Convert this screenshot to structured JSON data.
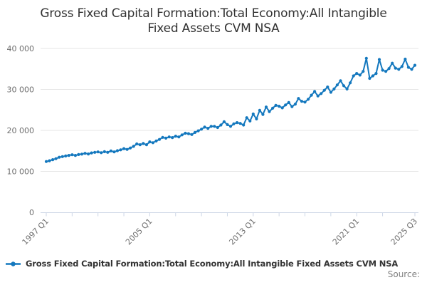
{
  "title": {
    "line1": "Gross Fixed Capital Formation:Total Economy:All Intangible",
    "line2": "Fixed Assets CVM NSA"
  },
  "legend": {
    "label": "Gross Fixed Capital Formation:Total Economy:All Intangible Fixed Assets CVM NSA"
  },
  "source": {
    "label": "Source:"
  },
  "colors": {
    "series": "#1478be",
    "grid": "#e6e6e6",
    "axis": "#ccd6e6",
    "tick_label": "#6f6f6f",
    "text": "#333333",
    "source_text": "#808080"
  },
  "chart_data": {
    "type": "line",
    "title": "Gross Fixed Capital Formation:Total Economy:All Intangible Fixed Assets CVM NSA",
    "series_name": "Gross Fixed Capital Formation:Total Economy:All Intangible Fixed Assets CVM NSA",
    "x_start": "1997 Q1",
    "x_end": "2025 Q3",
    "frequency": "quarterly",
    "markers": true,
    "grid": "horizontal",
    "legend_position": "bottom-left",
    "ylim": [
      0,
      40000
    ],
    "y_ticks": [
      {
        "value": 0,
        "label": "0"
      },
      {
        "value": 10000,
        "label": "10 000"
      },
      {
        "value": 20000,
        "label": "20 000"
      },
      {
        "value": 30000,
        "label": "30 000"
      },
      {
        "value": 40000,
        "label": "40 000"
      }
    ],
    "x_tick_indices": [
      0,
      8,
      16,
      24,
      32,
      40,
      48,
      56,
      64,
      72,
      80,
      88,
      96,
      104,
      114
    ],
    "x_axis_labels": [
      {
        "index": 0,
        "label": "1997 Q1"
      },
      {
        "index": 32,
        "label": "2005 Q1"
      },
      {
        "index": 64,
        "label": "2013 Q1"
      },
      {
        "index": 96,
        "label": "2021 Q1"
      },
      {
        "index": 114,
        "label": "2025 Q3"
      }
    ],
    "values": [
      12400,
      12600,
      12850,
      13100,
      13450,
      13600,
      13750,
      13900,
      14050,
      13900,
      14100,
      14200,
      14400,
      14250,
      14500,
      14650,
      14750,
      14550,
      14800,
      14650,
      15000,
      14750,
      15050,
      15250,
      15550,
      15350,
      15700,
      16100,
      16700,
      16500,
      16800,
      16500,
      17200,
      17000,
      17400,
      17800,
      18300,
      18100,
      18400,
      18250,
      18600,
      18400,
      18900,
      19300,
      19200,
      19000,
      19500,
      19900,
      20300,
      20800,
      20500,
      21000,
      21000,
      20700,
      21300,
      22100,
      21400,
      21000,
      21600,
      21900,
      21700,
      21300,
      23100,
      22300,
      24000,
      22800,
      24900,
      23900,
      25700,
      24600,
      25400,
      26100,
      25900,
      25500,
      26200,
      26800,
      25800,
      26400,
      27800,
      27100,
      26900,
      27600,
      28600,
      29500,
      28400,
      29000,
      29800,
      30600,
      29300,
      30100,
      31100,
      32100,
      30900,
      30100,
      31600,
      33300,
      33900,
      33500,
      34400,
      37600,
      32700,
      33300,
      33900,
      37300,
      34700,
      34400,
      35100,
      36400,
      35200,
      34900,
      35600,
      37400,
      35400,
      34900,
      35900
    ]
  }
}
